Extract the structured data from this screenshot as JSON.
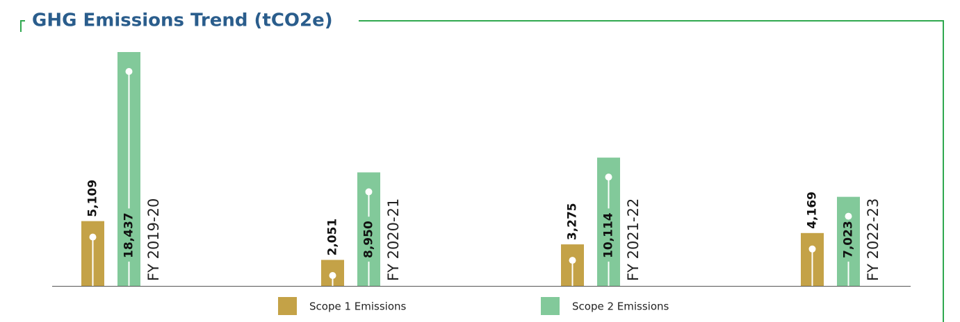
{
  "chart_data": {
    "type": "bar",
    "title": "GHG Emissions Trend (tCO2e)",
    "categories": [
      "FY 2019-20",
      "FY 2020-21",
      "FY 2021-22",
      "FY 2022-23"
    ],
    "series": [
      {
        "name": "Scope 1 Emissions",
        "color": "#c4a247",
        "values": [
          5109,
          2051,
          3275,
          4169
        ],
        "value_labels": [
          "5,109",
          "2,051",
          "3,275",
          "4,169"
        ]
      },
      {
        "name": "Scope 2 Emissions",
        "color": "#82c99a",
        "values": [
          18437,
          8950,
          10114,
          7023
        ],
        "value_labels": [
          "18,437",
          "8,950",
          "10,114",
          "7,023"
        ]
      }
    ]
  }
}
